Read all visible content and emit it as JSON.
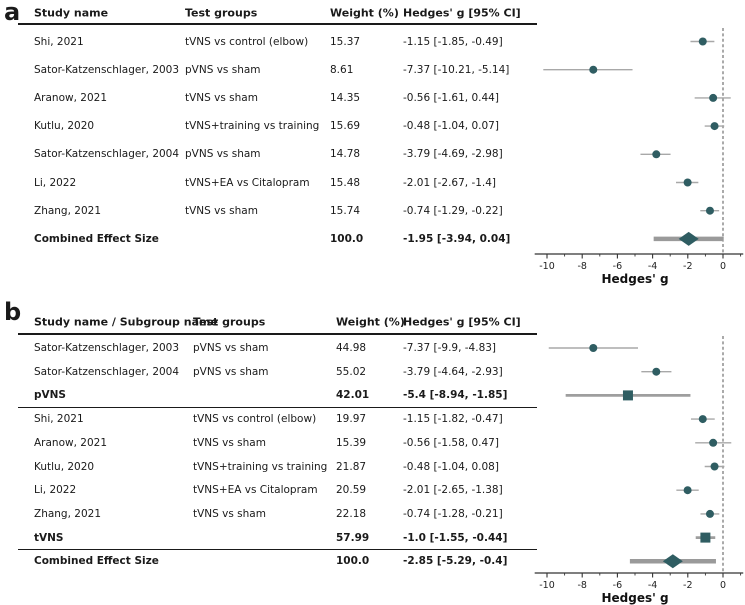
{
  "figure_colors": {
    "marker": "#2f5d62",
    "ci": "#a8a8a8",
    "ci_subgroup": "#9e9e9e",
    "ci_combined": "#9a9a9a",
    "axis": "#333333",
    "zero_line": "#555555",
    "rule": "#1a1a1a"
  },
  "chart_data": [
    {
      "type": "scatter",
      "subtype": "forest-plot",
      "panel_label": "a",
      "columns": [
        "Study name",
        "Test groups",
        "Weight (%)",
        "Hedges' g [95% CI]"
      ],
      "xlabel": "Hedges' g",
      "xticks": [
        -10,
        -8,
        -6,
        -4,
        -2,
        0
      ],
      "xlim": [
        -10.7,
        1.15
      ],
      "zero_line": 0,
      "grid": false,
      "legend": "none",
      "rows": [
        {
          "study": "Shi, 2021",
          "group": "tVNS vs control (elbow)",
          "weight": "15.37",
          "ci_text": "-1.15 [-1.85, -0.49]",
          "est": -1.15,
          "lo": -1.85,
          "hi": -0.49,
          "marker": "circle",
          "bold": false,
          "rule_below": false
        },
        {
          "study": "Sator-Katzenschlager, 2003",
          "group": "pVNS vs sham",
          "weight": "8.61",
          "ci_text": "-7.37 [-10.21, -5.14]",
          "est": -7.37,
          "lo": -10.21,
          "hi": -5.14,
          "marker": "circle",
          "bold": false,
          "rule_below": false
        },
        {
          "study": "Aranow, 2021",
          "group": "tVNS vs sham",
          "weight": "14.35",
          "ci_text": "-0.56 [-1.61, 0.44]",
          "est": -0.56,
          "lo": -1.61,
          "hi": 0.44,
          "marker": "circle",
          "bold": false,
          "rule_below": false
        },
        {
          "study": "Kutlu, 2020",
          "group": "tVNS+training vs training",
          "weight": "15.69",
          "ci_text": "-0.48 [-1.04, 0.07]",
          "est": -0.48,
          "lo": -1.04,
          "hi": 0.07,
          "marker": "circle",
          "bold": false,
          "rule_below": false
        },
        {
          "study": "Sator-Katzenschlager, 2004",
          "group": "pVNS vs sham",
          "weight": "14.78",
          "ci_text": "-3.79 [-4.69, -2.98]",
          "est": -3.79,
          "lo": -4.69,
          "hi": -2.98,
          "marker": "circle",
          "bold": false,
          "rule_below": false
        },
        {
          "study": "Li, 2022",
          "group": "tVNS+EA vs Citalopram",
          "weight": "15.48",
          "ci_text": "-2.01 [-2.67, -1.4]",
          "est": -2.01,
          "lo": -2.67,
          "hi": -1.4,
          "marker": "circle",
          "bold": false,
          "rule_below": false
        },
        {
          "study": "Zhang, 2021",
          "group": "tVNS vs sham",
          "weight": "15.74",
          "ci_text": "-0.74 [-1.29, -0.22]",
          "est": -0.74,
          "lo": -1.29,
          "hi": -0.22,
          "marker": "circle",
          "bold": false,
          "rule_below": false
        },
        {
          "study": "Combined Effect Size",
          "group": "",
          "weight": "100.0",
          "ci_text": "-1.95 [-3.94, 0.04]",
          "est": -1.95,
          "lo": -3.94,
          "hi": 0.04,
          "marker": "diamond",
          "bold": true,
          "rule_below": false
        }
      ]
    },
    {
      "type": "scatter",
      "subtype": "forest-plot",
      "panel_label": "b",
      "columns": [
        "Study name / Subgroup name",
        "Test groups",
        "Weight (%)",
        "Hedges' g [95% CI]"
      ],
      "xlabel": "Hedges' g",
      "xticks": [
        -10,
        -8,
        -6,
        -4,
        -2,
        0
      ],
      "xlim": [
        -10.7,
        1.15
      ],
      "zero_line": 0,
      "grid": false,
      "legend": "none",
      "rows": [
        {
          "study": "Sator-Katzenschlager, 2003",
          "group": "pVNS vs sham",
          "weight": "44.98",
          "ci_text": "-7.37 [-9.9, -4.83]",
          "est": -7.37,
          "lo": -9.9,
          "hi": -4.83,
          "marker": "circle",
          "bold": false,
          "rule_below": false
        },
        {
          "study": "Sator-Katzenschlager, 2004",
          "group": "pVNS vs sham",
          "weight": "55.02",
          "ci_text": "-3.79 [-4.64, -2.93]",
          "est": -3.79,
          "lo": -4.64,
          "hi": -2.93,
          "marker": "circle",
          "bold": false,
          "rule_below": false
        },
        {
          "study": "pVNS",
          "group": "",
          "weight": "42.01",
          "ci_text": "-5.4 [-8.94, -1.85]",
          "est": -5.4,
          "lo": -8.94,
          "hi": -1.85,
          "marker": "square",
          "bold": true,
          "rule_below": true
        },
        {
          "study": "Shi, 2021",
          "group": "tVNS vs control (elbow)",
          "weight": "19.97",
          "ci_text": "-1.15 [-1.82, -0.47]",
          "est": -1.15,
          "lo": -1.82,
          "hi": -0.47,
          "marker": "circle",
          "bold": false,
          "rule_below": false
        },
        {
          "study": "Aranow, 2021",
          "group": "tVNS vs sham",
          "weight": "15.39",
          "ci_text": "-0.56 [-1.58, 0.47]",
          "est": -0.56,
          "lo": -1.58,
          "hi": 0.47,
          "marker": "circle",
          "bold": false,
          "rule_below": false
        },
        {
          "study": "Kutlu, 2020",
          "group": "tVNS+training vs training",
          "weight": "21.87",
          "ci_text": "-0.48 [-1.04, 0.08]",
          "est": -0.48,
          "lo": -1.04,
          "hi": 0.08,
          "marker": "circle",
          "bold": false,
          "rule_below": false
        },
        {
          "study": "Li, 2022",
          "group": "tVNS+EA vs Citalopram",
          "weight": "20.59",
          "ci_text": "-2.01 [-2.65, -1.38]",
          "est": -2.01,
          "lo": -2.65,
          "hi": -1.38,
          "marker": "circle",
          "bold": false,
          "rule_below": false
        },
        {
          "study": "Zhang, 2021",
          "group": "tVNS vs sham",
          "weight": "22.18",
          "ci_text": "-0.74 [-1.28, -0.21]",
          "est": -0.74,
          "lo": -1.28,
          "hi": -0.21,
          "marker": "circle",
          "bold": false,
          "rule_below": false
        },
        {
          "study": "tVNS",
          "group": "",
          "weight": "57.99",
          "ci_text": "-1.0 [-1.55, -0.44]",
          "est": -1.0,
          "lo": -1.55,
          "hi": -0.44,
          "marker": "square",
          "bold": true,
          "rule_below": true
        },
        {
          "study": "Combined Effect Size",
          "group": "",
          "weight": "100.0",
          "ci_text": "-2.85 [-5.29, -0.4]",
          "est": -2.85,
          "lo": -5.29,
          "hi": -0.4,
          "marker": "diamond",
          "bold": true,
          "rule_below": false
        }
      ]
    }
  ]
}
